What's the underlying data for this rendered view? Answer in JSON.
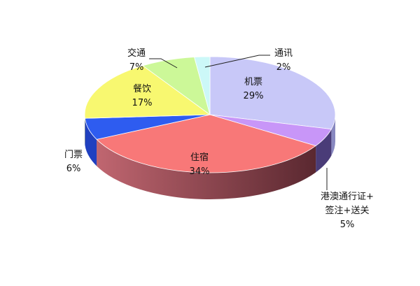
{
  "chart_data": {
    "type": "pie",
    "style": "3d",
    "slices": [
      {
        "label": "机票",
        "value": 29,
        "value_label": "29%",
        "color": "#c8c8f8",
        "side_color": "#8888c0"
      },
      {
        "label": "港澳通行证+签注+送关",
        "label_lines": [
          "港澳通行证+",
          "签注+送关"
        ],
        "value": 5,
        "value_label": "5%",
        "color": "#c896f8",
        "side_color": "#4a3c78"
      },
      {
        "label": "住宿",
        "value": 34,
        "value_label": "34%",
        "color": "#f87878",
        "side_color": "#b45a64",
        "side_color_dark": "#5a2830"
      },
      {
        "label": "门票",
        "value": 6,
        "value_label": "6%",
        "color": "#2e5cf0",
        "side_color": "#2040c0"
      },
      {
        "label": "餐饮",
        "value": 17,
        "value_label": "17%",
        "color": "#f8f870",
        "side_color": "#b0b040"
      },
      {
        "label": "交通",
        "value": 7,
        "value_label": "7%",
        "color": "#ccf898",
        "side_color": "#90b060"
      },
      {
        "label": "通讯",
        "value": 2,
        "value_label": "2%",
        "color": "#ccf8f8",
        "side_color": "#90b0b0"
      }
    ]
  }
}
